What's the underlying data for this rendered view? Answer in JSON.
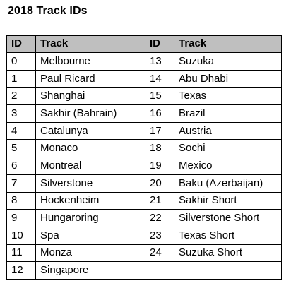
{
  "title": "2018 Track IDs",
  "columns": [
    "ID",
    "Track",
    "ID",
    "Track"
  ],
  "rows": [
    [
      "0",
      "Melbourne",
      "13",
      "Suzuka"
    ],
    [
      "1",
      "Paul Ricard",
      "14",
      "Abu Dhabi"
    ],
    [
      "2",
      "Shanghai",
      "15",
      "Texas"
    ],
    [
      "3",
      "Sakhir (Bahrain)",
      "16",
      "Brazil"
    ],
    [
      "4",
      "Catalunya",
      "17",
      "Austria"
    ],
    [
      "5",
      "Monaco",
      "18",
      "Sochi"
    ],
    [
      "6",
      "Montreal",
      "19",
      "Mexico"
    ],
    [
      "7",
      "Silverstone",
      "20",
      "Baku (Azerbaijan)"
    ],
    [
      "8",
      "Hockenheim",
      "21",
      "Sakhir Short"
    ],
    [
      "9",
      "Hungaroring",
      "22",
      "Silverstone Short"
    ],
    [
      "10",
      "Spa",
      "23",
      "Texas Short"
    ],
    [
      "11",
      "Monza",
      "24",
      "Suzuka Short"
    ],
    [
      "12",
      "Singapore",
      "",
      ""
    ]
  ],
  "colors": {
    "header_background": "#bfbfbf",
    "border": "#000000",
    "text": "#000000"
  }
}
